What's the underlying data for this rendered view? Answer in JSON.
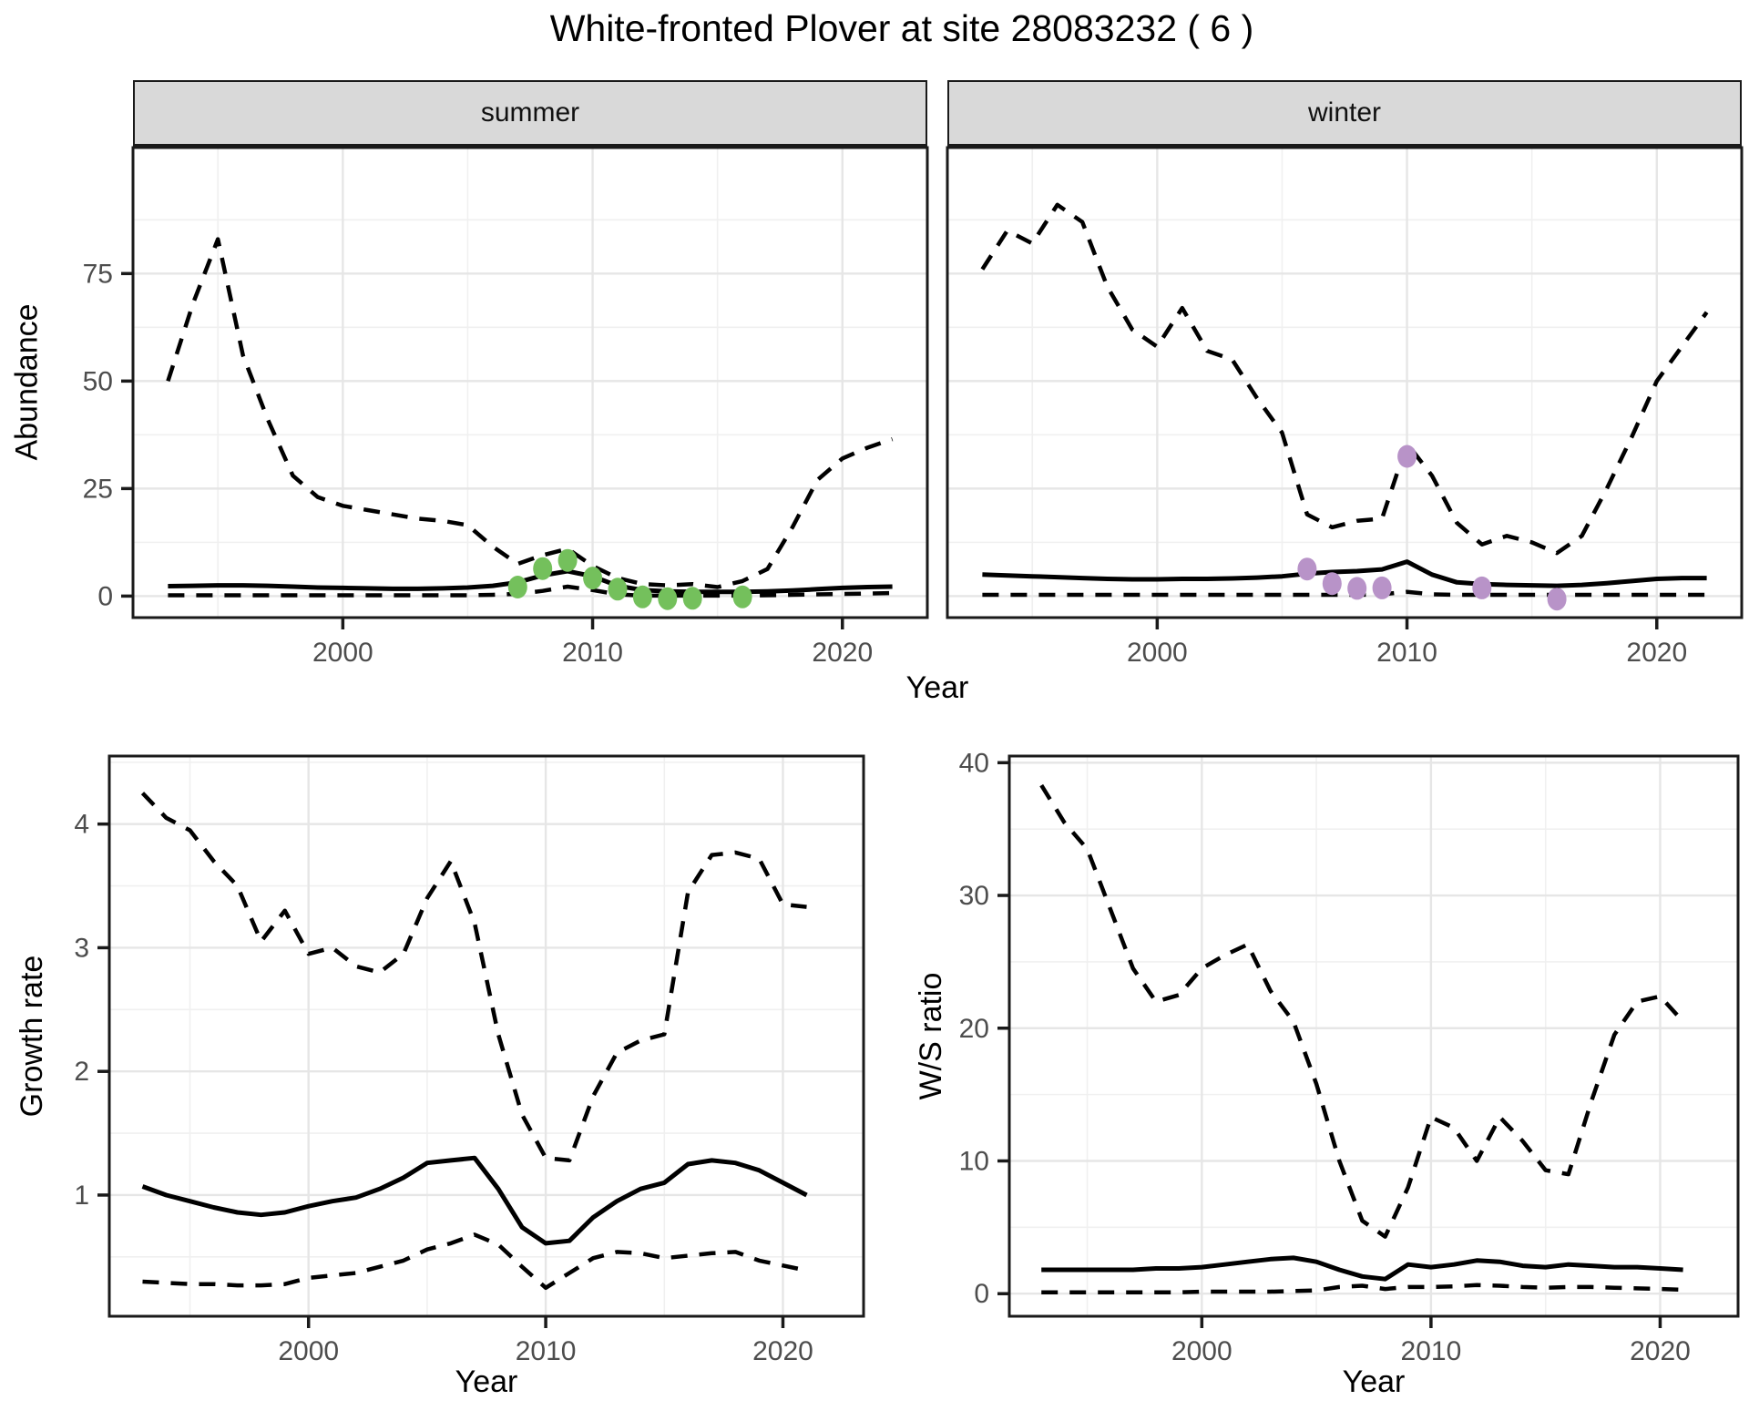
{
  "title": "White-fronted Plover at site 28083232 ( 6 )",
  "colors": {
    "summer_points": "#74c05c",
    "winter_points": "#b893c8",
    "line": "#000000",
    "grid_major": "#e6e6e6",
    "grid_minor": "#f0f0f0",
    "strip_bg": "#d9d9d9",
    "panel_border": "#1a1a1a",
    "axis_text": "#4d4d4d"
  },
  "chart_data": [
    {
      "key": "summer",
      "type": "line",
      "facet_label": "summer",
      "ylabel": "Abundance",
      "xlabel": "Year",
      "x": [
        1993,
        1994,
        1995,
        1996,
        1997,
        1998,
        1999,
        2000,
        2001,
        2002,
        2003,
        2004,
        2005,
        2006,
        2007,
        2008,
        2009,
        2010,
        2011,
        2012,
        2013,
        2014,
        2015,
        2016,
        2017,
        2018,
        2019,
        2020,
        2021,
        2022
      ],
      "series": [
        {
          "name": "upper_95_ci",
          "linetype": "dashed",
          "values": [
            50,
            68,
            83,
            56,
            41,
            28,
            23,
            21,
            20,
            19,
            18,
            17.5,
            16.5,
            11.5,
            7.5,
            9.5,
            11,
            7,
            4.2,
            2.8,
            2.5,
            2.8,
            2.1,
            3.5,
            6.3,
            16,
            27,
            32,
            34.5,
            36.5
          ]
        },
        {
          "name": "median",
          "linetype": "solid",
          "values": [
            2.3,
            2.4,
            2.5,
            2.5,
            2.4,
            2.2,
            2.0,
            1.9,
            1.8,
            1.7,
            1.7,
            1.8,
            2.0,
            2.4,
            3.2,
            4.8,
            5.8,
            4.6,
            2.4,
            1.4,
            1.1,
            1.0,
            1.0,
            1.0,
            1.1,
            1.3,
            1.6,
            1.9,
            2.1,
            2.2
          ]
        },
        {
          "name": "lower_95_ci",
          "linetype": "dashed",
          "values": [
            0.2,
            0.2,
            0.2,
            0.2,
            0.2,
            0.2,
            0.2,
            0.2,
            0.2,
            0.2,
            0.2,
            0.2,
            0.2,
            0.3,
            0.5,
            1.2,
            2.2,
            1.4,
            0.4,
            0.1,
            0.1,
            0.1,
            0.1,
            0.1,
            0.2,
            0.3,
            0.4,
            0.5,
            0.6,
            0.7
          ]
        }
      ],
      "observed_points": {
        "name": "summer-observations",
        "color": "#74c05c",
        "x": [
          2007,
          2008,
          2009,
          2010,
          2011,
          2012,
          2013,
          2014,
          2016
        ],
        "y": [
          2.1,
          6.4,
          8.3,
          4.2,
          1.6,
          -0.2,
          -0.6,
          -0.5,
          -0.2
        ]
      },
      "xlim": [
        1991.6,
        2023.4
      ],
      "ylim": [
        -5,
        104.3
      ],
      "xticks": [
        2000,
        2010,
        2020
      ],
      "yticks": [
        0,
        25,
        50,
        75
      ],
      "xminor": [
        1995,
        2005,
        2015
      ],
      "yminor": [
        12.5,
        37.5,
        62.5,
        87.5
      ],
      "grid": true,
      "legend": "none"
    },
    {
      "key": "winter",
      "type": "line",
      "facet_label": "winter",
      "ylabel": "Abundance",
      "xlabel": "Year",
      "x": [
        1993,
        1994,
        1995,
        1996,
        1997,
        1998,
        1999,
        2000,
        2001,
        2002,
        2003,
        2004,
        2005,
        2006,
        2007,
        2008,
        2009,
        2010,
        2011,
        2012,
        2013,
        2014,
        2015,
        2016,
        2017,
        2018,
        2019,
        2020,
        2021,
        2022
      ],
      "series": [
        {
          "name": "upper_95_ci",
          "linetype": "dashed",
          "values": [
            76,
            85,
            82,
            91,
            87,
            72,
            62,
            58,
            67,
            57,
            55,
            46,
            38,
            19,
            16,
            17.5,
            18,
            35.5,
            28,
            17,
            12,
            14,
            12.5,
            10,
            14,
            25,
            37,
            50,
            58,
            66
          ]
        },
        {
          "name": "median",
          "linetype": "solid",
          "values": [
            5.0,
            4.8,
            4.6,
            4.4,
            4.2,
            4.0,
            3.9,
            3.9,
            4.0,
            4.0,
            4.1,
            4.3,
            4.6,
            5.2,
            5.6,
            5.8,
            6.2,
            8.0,
            5.0,
            3.2,
            2.8,
            2.6,
            2.5,
            2.4,
            2.6,
            3.0,
            3.5,
            4.0,
            4.2,
            4.2
          ]
        },
        {
          "name": "lower_95_ci",
          "linetype": "dashed",
          "values": [
            0.3,
            0.3,
            0.3,
            0.3,
            0.3,
            0.3,
            0.3,
            0.3,
            0.3,
            0.3,
            0.3,
            0.3,
            0.3,
            0.3,
            0.3,
            0.3,
            0.4,
            1.0,
            0.4,
            0.3,
            0.3,
            0.3,
            0.3,
            0.3,
            0.3,
            0.3,
            0.3,
            0.3,
            0.3,
            0.3
          ]
        }
      ],
      "observed_points": {
        "name": "winter-observations",
        "color": "#b893c8",
        "x": [
          2006,
          2007,
          2008,
          2009,
          2010,
          2013,
          2016
        ],
        "y": [
          6.3,
          2.9,
          1.8,
          1.9,
          32.5,
          1.9,
          -0.7
        ]
      },
      "xlim": [
        1991.6,
        2023.4
      ],
      "ylim": [
        -5,
        104.3
      ],
      "xticks": [
        2000,
        2010,
        2020
      ],
      "yticks": [
        0,
        25,
        50,
        75
      ],
      "xminor": [
        1995,
        2005,
        2015
      ],
      "yminor": [
        12.5,
        37.5,
        62.5,
        87.5
      ],
      "grid": true,
      "legend": "none"
    },
    {
      "key": "growth",
      "type": "line",
      "facet_label": "",
      "ylabel": "Growth rate",
      "xlabel": "Year",
      "x": [
        1993,
        1994,
        1995,
        1996,
        1997,
        1998,
        1999,
        2000,
        2001,
        2002,
        2003,
        2004,
        2005,
        2006,
        2007,
        2008,
        2009,
        2010,
        2011,
        2012,
        2013,
        2014,
        2015,
        2016,
        2017,
        2018,
        2019,
        2020,
        2021
      ],
      "series": [
        {
          "name": "upper_95_ci",
          "linetype": "dashed",
          "values": [
            4.25,
            4.05,
            3.95,
            3.7,
            3.5,
            3.05,
            3.3,
            2.95,
            3.0,
            2.85,
            2.8,
            2.95,
            3.4,
            3.7,
            3.2,
            2.3,
            1.65,
            1.3,
            1.28,
            1.8,
            2.15,
            2.25,
            2.3,
            3.45,
            3.75,
            3.77,
            3.72,
            3.35,
            3.33
          ]
        },
        {
          "name": "median",
          "linetype": "solid",
          "values": [
            1.07,
            1.0,
            0.95,
            0.9,
            0.86,
            0.84,
            0.86,
            0.91,
            0.95,
            0.98,
            1.05,
            1.14,
            1.26,
            1.28,
            1.3,
            1.05,
            0.74,
            0.61,
            0.63,
            0.82,
            0.95,
            1.05,
            1.1,
            1.25,
            1.28,
            1.26,
            1.2,
            1.1,
            1.0
          ]
        },
        {
          "name": "lower_95_ci",
          "linetype": "dashed",
          "values": [
            0.3,
            0.29,
            0.28,
            0.28,
            0.27,
            0.27,
            0.28,
            0.33,
            0.35,
            0.37,
            0.42,
            0.47,
            0.56,
            0.61,
            0.68,
            0.6,
            0.42,
            0.25,
            0.37,
            0.49,
            0.54,
            0.53,
            0.49,
            0.51,
            0.53,
            0.54,
            0.47,
            0.43,
            0.39
          ]
        }
      ],
      "xlim": [
        1991.6,
        2023.4
      ],
      "ylim": [
        0.02,
        4.55
      ],
      "xticks": [
        2000,
        2010,
        2020
      ],
      "yticks": [
        1,
        2,
        3,
        4
      ],
      "xminor": [
        1995,
        2005,
        2015
      ],
      "yminor": [
        0.5,
        1.5,
        2.5,
        3.5,
        4.5
      ],
      "grid": true,
      "legend": "none"
    },
    {
      "key": "ws",
      "type": "line",
      "facet_label": "",
      "ylabel": "W/S ratio",
      "xlabel": "Year",
      "x": [
        1993,
        1994,
        1995,
        1996,
        1997,
        1998,
        1999,
        2000,
        2001,
        2002,
        2003,
        2004,
        2005,
        2006,
        2007,
        2008,
        2009,
        2010,
        2011,
        2012,
        2013,
        2014,
        2015,
        2016,
        2017,
        2018,
        2019,
        2020,
        2021
      ],
      "series": [
        {
          "name": "upper_95_ci",
          "linetype": "dashed",
          "values": [
            38.3,
            35.5,
            33.5,
            29,
            24.5,
            22,
            22.5,
            24.5,
            25.5,
            26.3,
            22.8,
            20.5,
            15.8,
            10,
            5.5,
            4.3,
            8,
            13.3,
            12.5,
            10,
            13.3,
            11.5,
            9.3,
            9,
            14.5,
            19.5,
            22,
            22.4,
            20.5
          ]
        },
        {
          "name": "median",
          "linetype": "solid",
          "values": [
            1.8,
            1.8,
            1.8,
            1.8,
            1.8,
            1.9,
            1.9,
            2.0,
            2.2,
            2.4,
            2.6,
            2.7,
            2.4,
            1.8,
            1.3,
            1.1,
            2.2,
            2.0,
            2.2,
            2.5,
            2.4,
            2.1,
            2.0,
            2.2,
            2.1,
            2.0,
            2.0,
            1.9,
            1.8
          ]
        },
        {
          "name": "lower_95_ci",
          "linetype": "dashed",
          "values": [
            0.1,
            0.1,
            0.1,
            0.1,
            0.1,
            0.1,
            0.1,
            0.15,
            0.15,
            0.15,
            0.15,
            0.2,
            0.25,
            0.5,
            0.6,
            0.35,
            0.5,
            0.5,
            0.55,
            0.65,
            0.6,
            0.5,
            0.45,
            0.5,
            0.5,
            0.45,
            0.4,
            0.35,
            0.3
          ]
        }
      ],
      "xlim": [
        1991.6,
        2023.4
      ],
      "ylim": [
        -1.7,
        40.5
      ],
      "xticks": [
        2000,
        2010,
        2020
      ],
      "yticks": [
        0,
        10,
        20,
        30,
        40
      ],
      "xminor": [
        1995,
        2005,
        2015
      ],
      "yminor": [
        5,
        15,
        25,
        35
      ],
      "grid": true,
      "legend": "none"
    }
  ]
}
